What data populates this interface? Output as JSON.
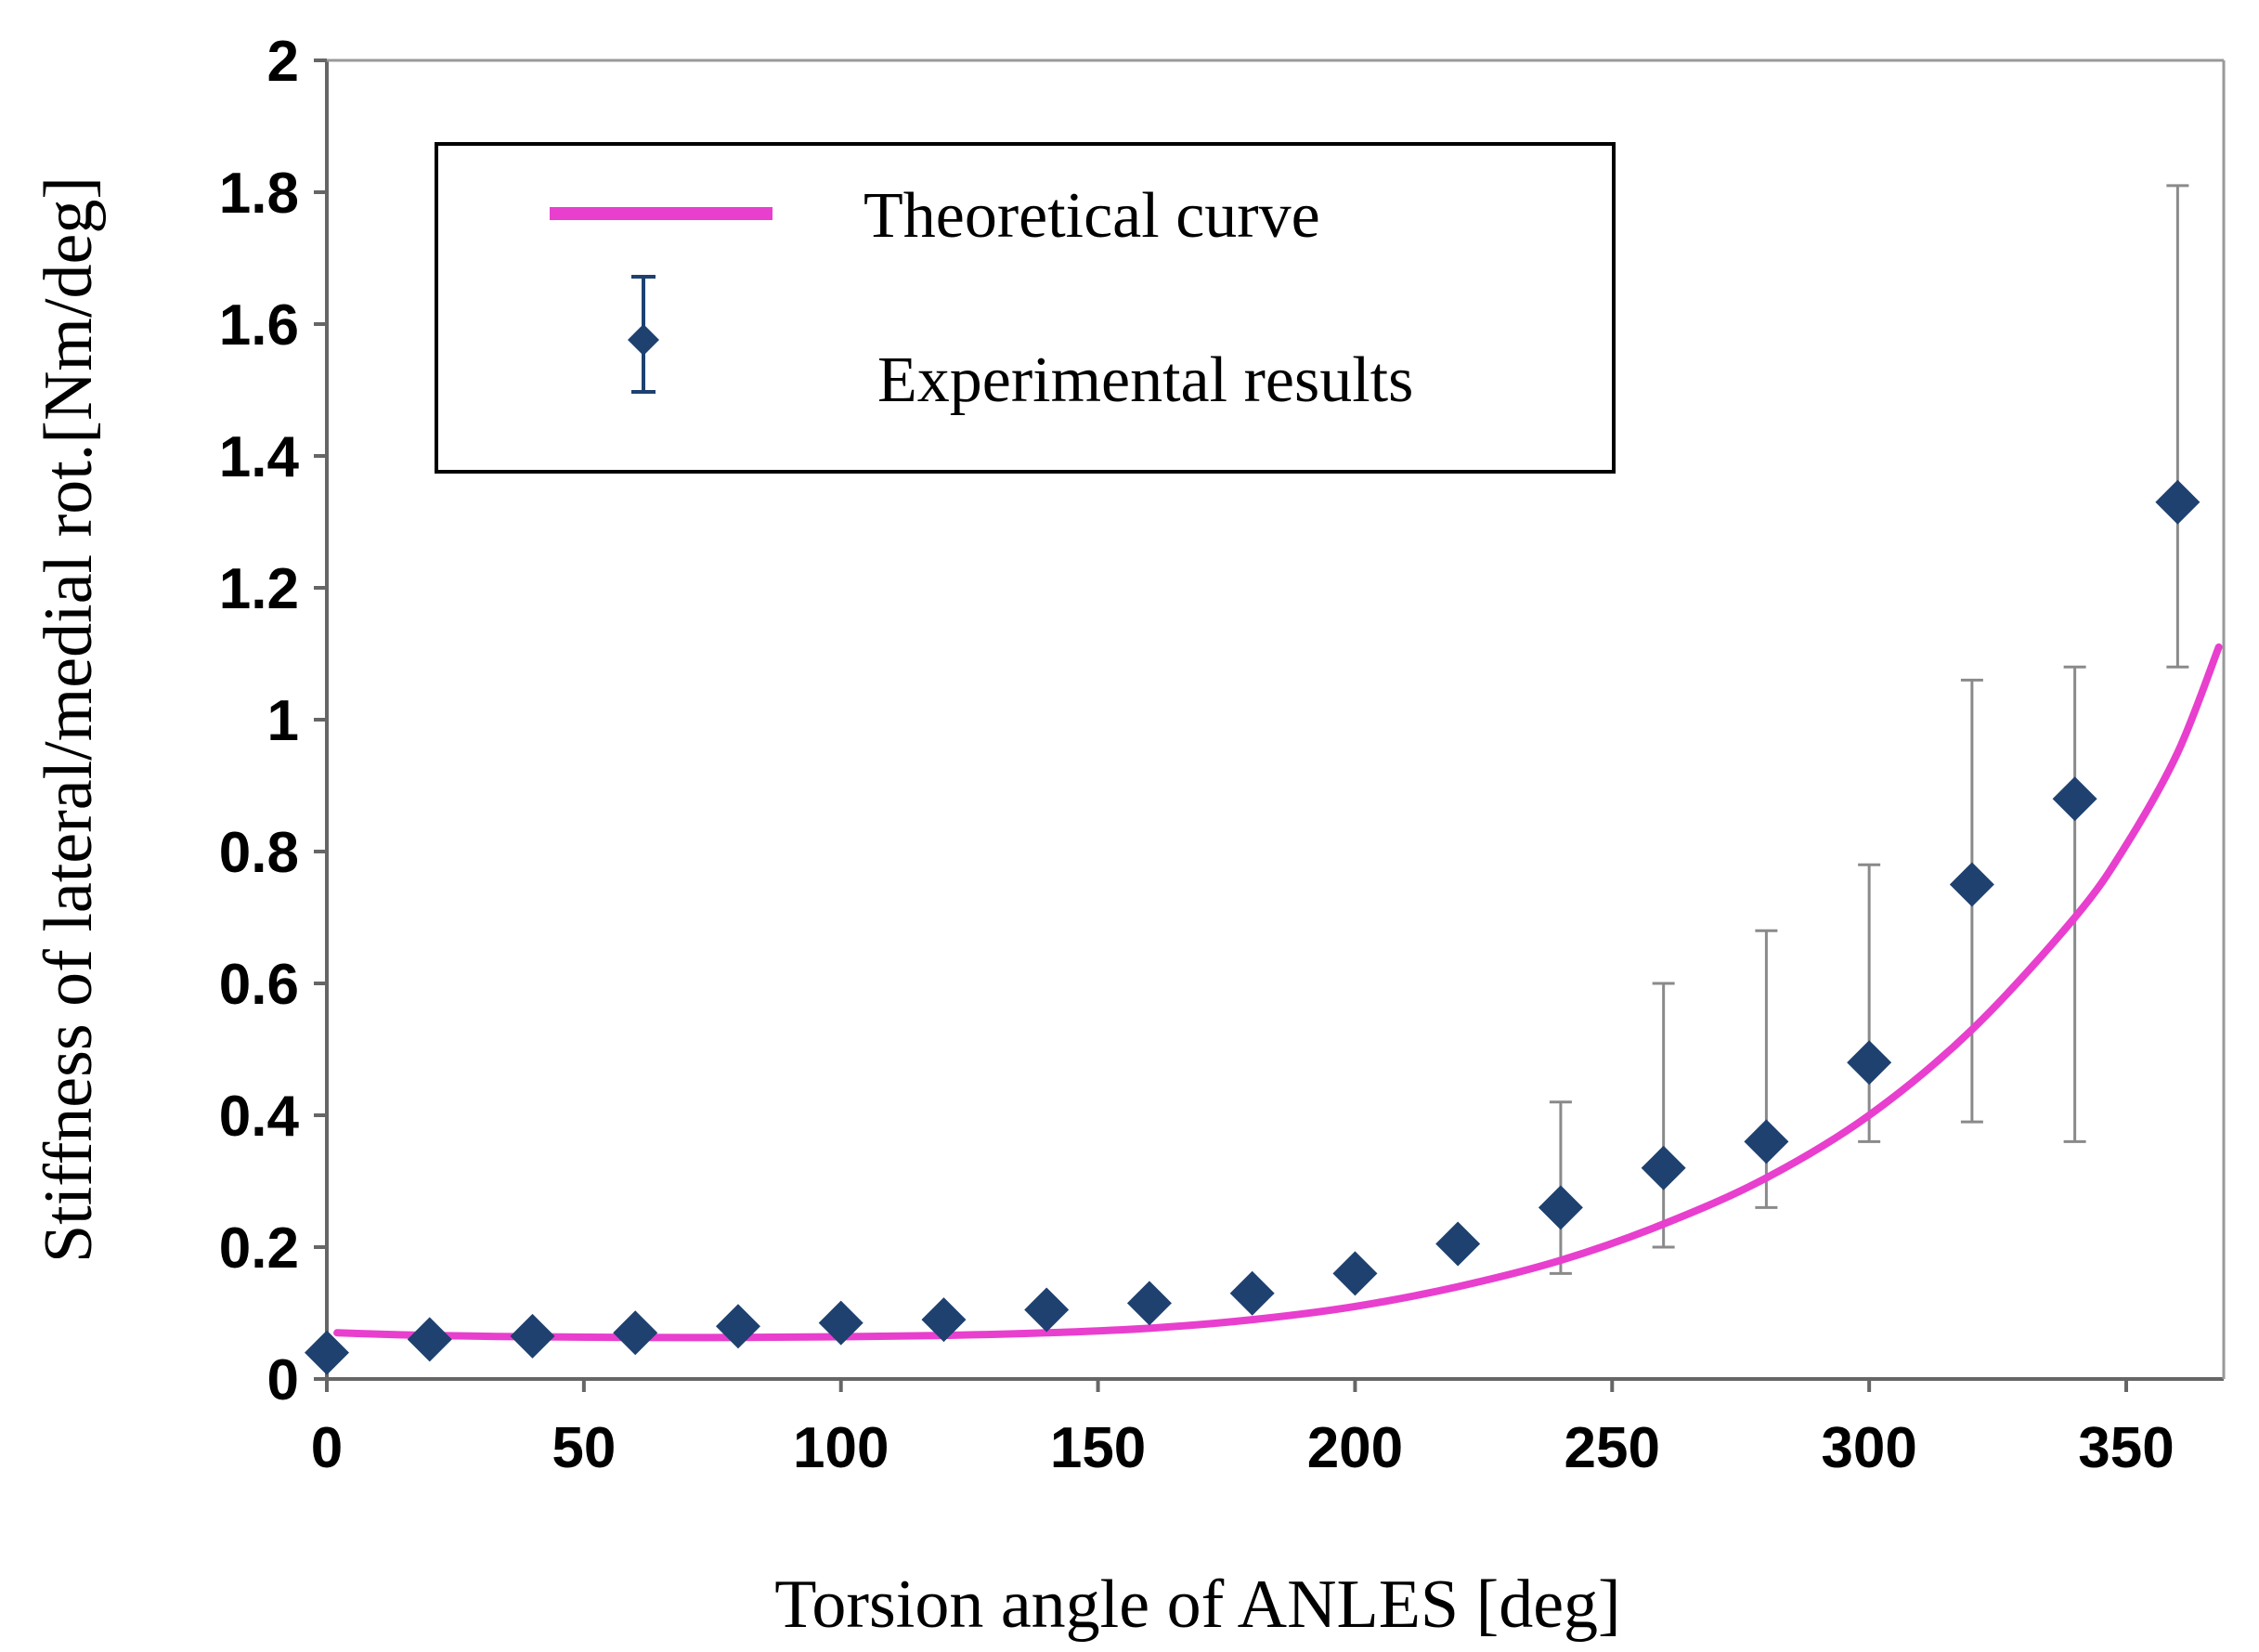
{
  "chart_data": {
    "type": "scatter",
    "xlabel": "Torsion angle of ANLES [deg]",
    "ylabel": "Stiffness of lateral/medial rot.[Nm/deg]",
    "xlim": [
      0,
      370
    ],
    "ylim": [
      0,
      2
    ],
    "xticks": [
      "0",
      "50",
      "100",
      "150",
      "200",
      "250",
      "300",
      "350"
    ],
    "xtick_values": [
      0,
      50,
      100,
      150,
      200,
      250,
      300,
      350
    ],
    "yticks": [
      "0",
      "0.2",
      "0.4",
      "0.6",
      "0.8",
      "1",
      "1.2",
      "1.4",
      "1.6",
      "1.8",
      "2"
    ],
    "ytick_values": [
      0,
      0.2,
      0.4,
      0.6,
      0.8,
      1,
      1.2,
      1.4,
      1.6,
      1.8,
      2
    ],
    "grid": false,
    "legend": {
      "placement": "top-left",
      "entries": [
        "Theoretical curve",
        "Experimental results"
      ]
    },
    "series": [
      {
        "name": "Theoretical curve",
        "kind": "line",
        "color": "#e83fce",
        "x": [
          2,
          20,
          40,
          60,
          80,
          100,
          120,
          140,
          160,
          180,
          200,
          220,
          240,
          260,
          280,
          300,
          320,
          340,
          350,
          360,
          368
        ],
        "y": [
          0.07,
          0.066,
          0.064,
          0.063,
          0.063,
          0.064,
          0.066,
          0.07,
          0.077,
          0.09,
          0.11,
          0.14,
          0.18,
          0.235,
          0.305,
          0.4,
          0.53,
          0.7,
          0.81,
          0.95,
          1.11
        ]
      },
      {
        "name": "Experimental results",
        "kind": "scatter",
        "color": "#1e4170",
        "x": [
          0,
          20,
          40,
          60,
          80,
          100,
          120,
          140,
          160,
          180,
          200,
          220,
          240,
          260,
          280,
          300,
          320,
          340,
          360
        ],
        "y": [
          0.04,
          0.06,
          0.065,
          0.07,
          0.08,
          0.085,
          0.09,
          0.105,
          0.115,
          0.13,
          0.16,
          0.205,
          0.26,
          0.32,
          0.36,
          0.48,
          0.75,
          0.88,
          1.33
        ],
        "err_low": [
          null,
          null,
          null,
          null,
          null,
          null,
          null,
          null,
          null,
          null,
          null,
          null,
          0.16,
          0.2,
          0.26,
          0.36,
          0.39,
          0.36,
          1.08
        ],
        "err_high": [
          null,
          null,
          null,
          null,
          null,
          null,
          null,
          null,
          null,
          null,
          null,
          null,
          0.42,
          0.6,
          0.68,
          0.78,
          1.06,
          1.08,
          1.81
        ]
      }
    ]
  }
}
